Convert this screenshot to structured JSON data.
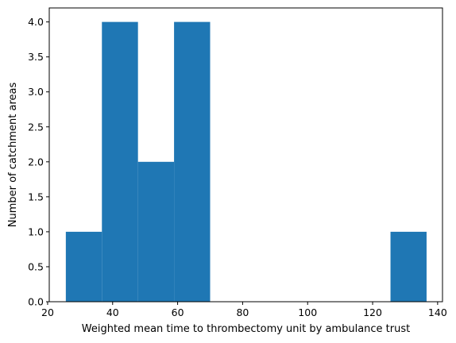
{
  "chart_data": {
    "type": "bar",
    "title": "",
    "xlabel": "Weighted mean time to thrombectomy unit by ambulance trust",
    "ylabel": "Number of catchment areas",
    "xlim": [
      20.5,
      141.5
    ],
    "ylim": [
      0,
      4.2
    ],
    "bins": [
      {
        "x0": 25.6,
        "x1": 36.7,
        "count": 1
      },
      {
        "x0": 36.7,
        "x1": 47.8,
        "count": 4
      },
      {
        "x0": 47.8,
        "x1": 58.9,
        "count": 2
      },
      {
        "x0": 58.9,
        "x1": 70.0,
        "count": 4
      },
      {
        "x0": 70.0,
        "x1": 81.1,
        "count": 0
      },
      {
        "x0": 81.1,
        "x1": 92.2,
        "count": 0
      },
      {
        "x0": 92.2,
        "x1": 103.3,
        "count": 0
      },
      {
        "x0": 103.3,
        "x1": 114.4,
        "count": 0
      },
      {
        "x0": 114.4,
        "x1": 125.5,
        "count": 0
      },
      {
        "x0": 125.5,
        "x1": 136.6,
        "count": 1
      }
    ],
    "xticks": [
      20,
      40,
      60,
      80,
      100,
      120,
      140
    ],
    "yticks": [
      0.0,
      0.5,
      1.0,
      1.5,
      2.0,
      2.5,
      3.0,
      3.5,
      4.0
    ],
    "xtick_labels": [
      "20",
      "40",
      "60",
      "80",
      "100",
      "120",
      "140"
    ],
    "ytick_labels": [
      "0.0",
      "0.5",
      "1.0",
      "1.5",
      "2.0",
      "2.5",
      "3.0",
      "3.5",
      "4.0"
    ],
    "bar_color": "#1f77b4",
    "grid": false,
    "legend": "none"
  }
}
